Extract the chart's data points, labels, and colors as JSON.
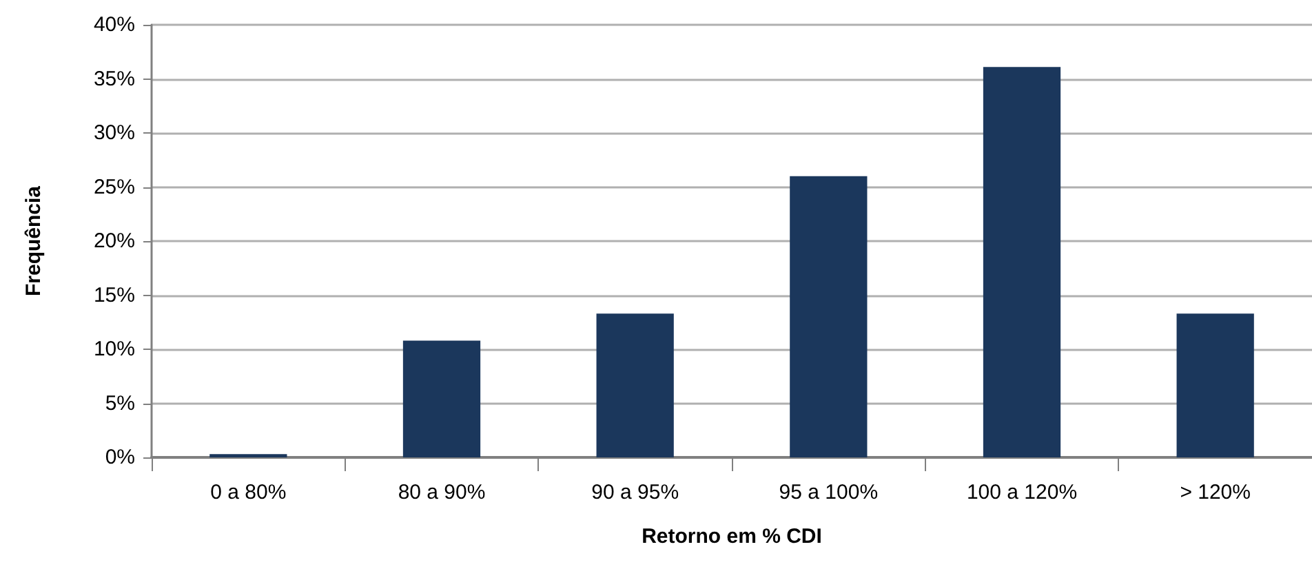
{
  "chart_data": {
    "type": "bar",
    "xlabel": "Retorno em % CDI",
    "ylabel": "Frequência",
    "categories": [
      "0 a 80%",
      "80 a 90%",
      "90 a 95%",
      "95 a 100%",
      "100 a 120%",
      "> 120%"
    ],
    "values": [
      0.3,
      10.8,
      13.3,
      26,
      36.1,
      13.3
    ],
    "color": "#1b375c",
    "ylim": [
      0,
      40
    ],
    "yticks": [
      {
        "value": 0,
        "label": "0%"
      },
      {
        "value": 5,
        "label": "5%"
      },
      {
        "value": 10,
        "label": "10%"
      },
      {
        "value": 15,
        "label": "15%"
      },
      {
        "value": 20,
        "label": "20%"
      },
      {
        "value": 25,
        "label": "25%"
      },
      {
        "value": 30,
        "label": "30%"
      },
      {
        "value": 35,
        "label": "35%"
      },
      {
        "value": 40,
        "label": "40%"
      }
    ],
    "grid": "y"
  }
}
